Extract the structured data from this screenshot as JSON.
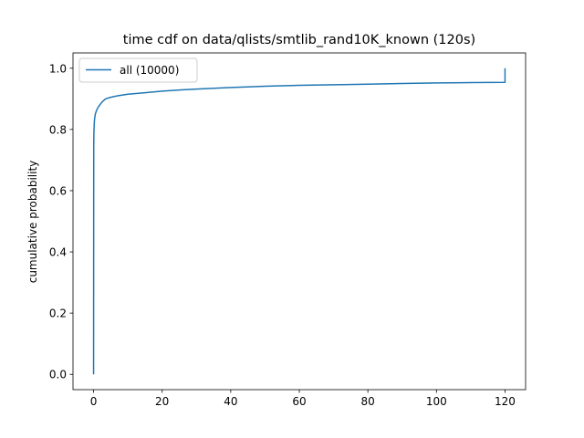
{
  "chart_data": {
    "type": "line",
    "title": "time cdf on data/qlists/smtlib_rand10K_known (120s)",
    "xlabel": "",
    "ylabel": "cumulative probability",
    "xlim": [
      -6,
      126
    ],
    "ylim": [
      -0.05,
      1.05
    ],
    "grid": false,
    "legend_position": "top-left",
    "x_ticks": [
      0,
      20,
      40,
      60,
      80,
      100,
      120
    ],
    "y_ticks": [
      0.0,
      0.2,
      0.4,
      0.6,
      0.8,
      1.0
    ],
    "x_tick_labels": [
      "0",
      "20",
      "40",
      "60",
      "80",
      "100",
      "120"
    ],
    "y_tick_labels": [
      "0.0",
      "0.2",
      "0.4",
      "0.6",
      "0.8",
      "1.0"
    ],
    "series": [
      {
        "name": "all (10000)",
        "color": "#1f77b4",
        "x": [
          0,
          0.05,
          0.1,
          0.2,
          0.3,
          0.5,
          0.8,
          1.2,
          1.8,
          2.5,
          3.5,
          5,
          7,
          10,
          15,
          20,
          25,
          30,
          40,
          50,
          60,
          70,
          80,
          90,
          100,
          110,
          119.9,
          120,
          120
        ],
        "y": [
          0.0,
          0.75,
          0.79,
          0.82,
          0.835,
          0.85,
          0.86,
          0.87,
          0.88,
          0.89,
          0.9,
          0.905,
          0.91,
          0.915,
          0.92,
          0.925,
          0.929,
          0.932,
          0.937,
          0.941,
          0.944,
          0.946,
          0.948,
          0.95,
          0.952,
          0.953,
          0.954,
          0.954,
          1.0
        ]
      }
    ]
  }
}
